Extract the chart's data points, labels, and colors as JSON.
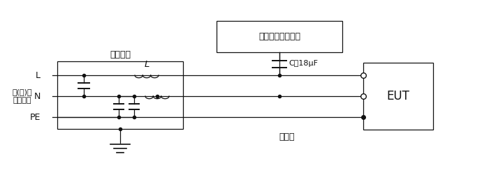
{
  "bg_color": "#ffffff",
  "line_color": "#111111",
  "text_color": "#111111",
  "font_size": 8.5,
  "fig_width": 7.0,
  "fig_height": 2.54,
  "dpi": 100,
  "labels": {
    "ac_source": "交(直)流\n供电网络",
    "L_line": "L",
    "N_line": "N",
    "PE_line": "PE",
    "filter_box": "去耦网络",
    "inductor_L": "L",
    "generator_box": "组合波信号发生器",
    "capacitor": "C＝18μF",
    "eut_box": "EUT",
    "reference": "参考地"
  }
}
